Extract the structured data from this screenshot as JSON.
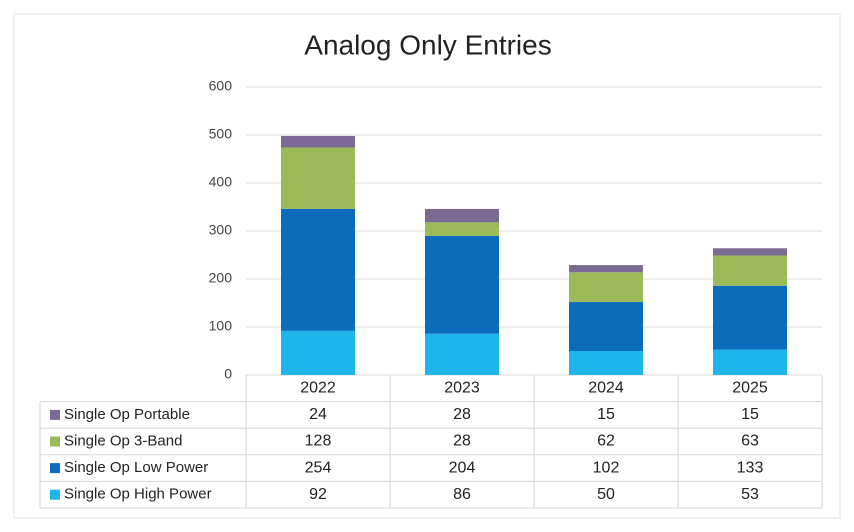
{
  "chart_data": {
    "type": "stacked_bar",
    "title": "Analog Only Entries",
    "categories": [
      "2022",
      "2023",
      "2024",
      "2025"
    ],
    "series": [
      {
        "name": "Single Op High Power",
        "color": "#1fb4ea",
        "values": [
          92,
          86,
          50,
          53
        ]
      },
      {
        "name": "Single Op Low Power",
        "color": "#0b6bbd",
        "values": [
          254,
          204,
          102,
          133
        ]
      },
      {
        "name": "Single Op 3-Band",
        "color": "#9bbb59",
        "values": [
          128,
          28,
          62,
          63
        ]
      },
      {
        "name": "Single Op Portable",
        "color": "#7b6b94",
        "values": [
          24,
          28,
          15,
          15
        ]
      }
    ],
    "ylim": [
      0,
      600
    ],
    "yticks": [
      0,
      100,
      200,
      300,
      400,
      500,
      600
    ],
    "grid": true
  }
}
